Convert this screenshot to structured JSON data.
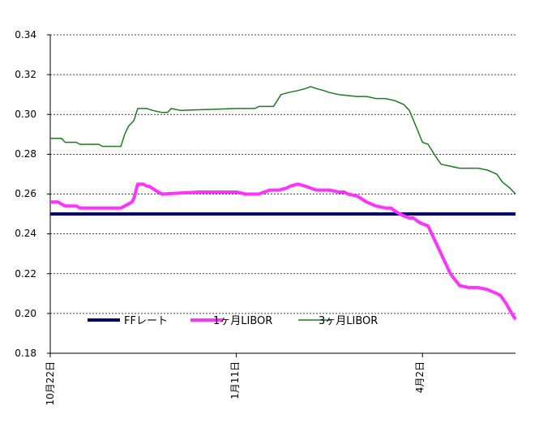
{
  "chart_data": {
    "type": "line",
    "ylim": [
      0.18,
      0.34
    ],
    "yticks": [
      "0.18",
      "0.20",
      "0.22",
      "0.24",
      "0.26",
      "0.28",
      "0.30",
      "0.32",
      "0.34"
    ],
    "xticks": [
      "10月22日",
      "1月11日",
      "4月2日"
    ],
    "grid": "horizontal-dashed",
    "legend_position": "bottom-inside",
    "colors": {
      "ff": "#000066",
      "libor1m": "#FF33FF",
      "libor3m": "#1F7A1F",
      "axis": "#000000",
      "grid": "#000000"
    },
    "series": [
      {
        "name": "FFレート",
        "key": "ff",
        "x": [
          0,
          250
        ],
        "y": [
          0.25,
          0.25
        ]
      },
      {
        "name": "1ヶ月LIBOR",
        "key": "libor1m",
        "x": [
          0,
          4,
          6,
          8,
          14,
          16,
          38,
          40,
          42,
          44,
          45,
          47,
          50,
          52,
          53,
          58,
          60,
          80,
          100,
          105,
          110,
          112,
          118,
          121,
          123,
          127,
          129,
          133,
          137,
          140,
          143,
          147,
          150,
          155,
          158,
          160,
          165,
          170,
          175,
          180,
          183,
          186,
          190,
          193,
          195,
          198,
          200,
          203,
          205,
          210,
          215,
          220,
          225,
          230,
          235,
          240,
          242,
          245,
          248,
          250
        ],
        "y": [
          0.256,
          0.256,
          0.255,
          0.254,
          0.254,
          0.253,
          0.253,
          0.254,
          0.255,
          0.256,
          0.258,
          0.265,
          0.265,
          0.264,
          0.264,
          0.261,
          0.26,
          0.261,
          0.261,
          0.26,
          0.26,
          0.26,
          0.262,
          0.262,
          0.262,
          0.263,
          0.264,
          0.265,
          0.264,
          0.263,
          0.262,
          0.262,
          0.262,
          0.261,
          0.261,
          0.26,
          0.259,
          0.256,
          0.254,
          0.253,
          0.253,
          0.251,
          0.249,
          0.248,
          0.248,
          0.246,
          0.245,
          0.244,
          0.24,
          0.23,
          0.22,
          0.214,
          0.213,
          0.213,
          0.212,
          0.21,
          0.209,
          0.205,
          0.2,
          0.197
        ]
      },
      {
        "name": "3ヶ月LIBOR",
        "key": "libor3m",
        "x": [
          0,
          6,
          8,
          14,
          16,
          26,
          28,
          38,
          40,
          42,
          45,
          47,
          52,
          55,
          60,
          63,
          65,
          70,
          100,
          110,
          112,
          120,
          124,
          128,
          133,
          137,
          140,
          143,
          147,
          150,
          155,
          165,
          170,
          175,
          180,
          185,
          190,
          193,
          197,
          200,
          203,
          207,
          210,
          215,
          220,
          225,
          230,
          235,
          240,
          243,
          247,
          250
        ],
        "y": [
          0.288,
          0.288,
          0.286,
          0.286,
          0.285,
          0.285,
          0.284,
          0.284,
          0.29,
          0.294,
          0.297,
          0.303,
          0.303,
          0.302,
          0.301,
          0.301,
          0.303,
          0.302,
          0.303,
          0.303,
          0.304,
          0.304,
          0.31,
          0.311,
          0.312,
          0.313,
          0.314,
          0.313,
          0.312,
          0.311,
          0.31,
          0.309,
          0.309,
          0.308,
          0.308,
          0.307,
          0.305,
          0.302,
          0.293,
          0.286,
          0.285,
          0.279,
          0.275,
          0.274,
          0.273,
          0.273,
          0.273,
          0.272,
          0.27,
          0.266,
          0.263,
          0.26
        ]
      }
    ]
  }
}
